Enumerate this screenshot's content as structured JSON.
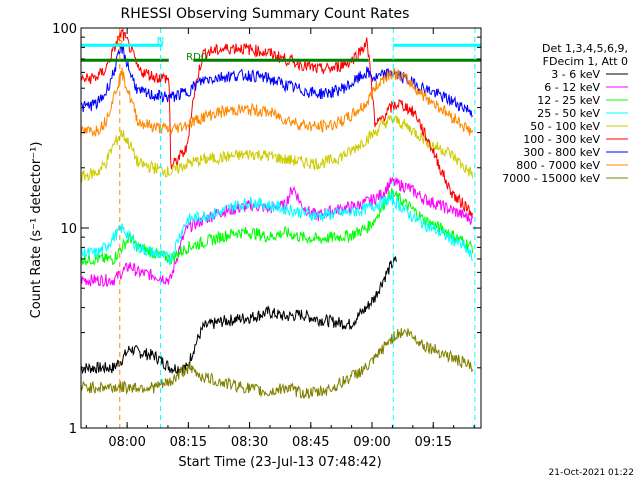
{
  "chart_data": {
    "type": "line",
    "title": "RHESSI Observing Summary Count Rates",
    "xlabel": "Start Time (23-Jul-13 07:48:42)",
    "ylabel": "Count Rate (s⁻¹ detector⁻¹)",
    "yscale": "log",
    "ylim": [
      1,
      100
    ],
    "xlim_minutes": [
      0,
      98
    ],
    "x_ticks": [
      {
        "t": 11.3,
        "label": "08:00"
      },
      {
        "t": 26.3,
        "label": "08:15"
      },
      {
        "t": 41.3,
        "label": "08:30"
      },
      {
        "t": 56.3,
        "label": "08:45"
      },
      {
        "t": 71.3,
        "label": "09:00"
      },
      {
        "t": 86.3,
        "label": "09:15"
      }
    ],
    "y_ticks": [
      {
        "v": 1,
        "label": "1"
      },
      {
        "v": 10,
        "label": "10"
      },
      {
        "v": 100,
        "label": "100"
      }
    ],
    "legend_header": [
      "Det 1,3,4,5,6,9,",
      "FDecim 1, Att 0"
    ],
    "legend_placement": "right",
    "series": [
      {
        "name": "3 - 6 keV",
        "color": "#000000",
        "x": [
          0,
          8,
          10,
          12,
          14,
          18,
          22,
          26,
          30,
          34,
          38,
          42,
          46,
          50,
          54,
          58,
          62,
          66,
          70,
          72,
          74,
          76,
          77.5
        ],
        "y": [
          2.0,
          2.0,
          2.2,
          2.5,
          2.4,
          2.3,
          2.0,
          2.0,
          3.2,
          3.4,
          3.5,
          3.6,
          3.8,
          3.6,
          3.7,
          3.5,
          3.4,
          3.3,
          4.0,
          4.5,
          5.5,
          6.5,
          7.0
        ]
      },
      {
        "name": "6 - 12 keV",
        "color": "#ff00ff",
        "x": [
          0,
          8,
          10,
          12,
          14,
          18,
          22,
          26,
          30,
          34,
          38,
          42,
          46,
          50,
          52,
          54,
          56,
          58,
          60,
          64,
          68,
          70,
          72,
          74,
          76,
          78,
          80,
          82,
          84,
          86,
          88,
          90,
          92,
          94,
          96
        ],
        "y": [
          5.5,
          5.5,
          6.0,
          6.5,
          6.0,
          5.8,
          5.5,
          10.0,
          11.0,
          12.0,
          12.5,
          13.0,
          12.5,
          13.0,
          16.0,
          13.0,
          12.0,
          11.5,
          12.0,
          12.5,
          13.0,
          13.5,
          14.0,
          15.0,
          17.0,
          16.5,
          16.0,
          15.0,
          14.0,
          13.5,
          13.0,
          12.5,
          12.0,
          11.5,
          11.0
        ]
      },
      {
        "name": "12 - 25 keV",
        "color": "#00ff00",
        "x": [
          0,
          8,
          10,
          12,
          14,
          18,
          22,
          26,
          30,
          34,
          38,
          42,
          46,
          50,
          54,
          58,
          62,
          66,
          70,
          72,
          74,
          76,
          78,
          80,
          82,
          84,
          86,
          88,
          90,
          92,
          94,
          96
        ],
        "y": [
          7.0,
          7.0,
          8.0,
          9.0,
          8.0,
          7.5,
          7.0,
          8.0,
          8.5,
          9.0,
          9.5,
          9.5,
          9.0,
          9.5,
          9.0,
          8.8,
          9.0,
          9.2,
          10.0,
          11.0,
          13.0,
          15.0,
          14.0,
          13.0,
          12.0,
          11.0,
          10.5,
          10.0,
          9.5,
          9.0,
          8.5,
          8.0
        ]
      },
      {
        "name": "25 - 50 keV",
        "color": "#00ffff",
        "x": [
          0,
          4,
          6,
          8,
          10,
          12,
          14,
          18,
          22,
          26,
          30,
          34,
          38,
          42,
          46,
          50,
          54,
          58,
          62,
          66,
          70,
          72,
          74,
          76,
          78,
          80,
          82,
          84,
          86,
          88,
          90,
          92,
          94,
          96
        ],
        "y": [
          7.5,
          7.5,
          8.0,
          9.0,
          10.0,
          9.0,
          8.0,
          7.5,
          7.0,
          11.0,
          11.5,
          12.0,
          13.0,
          13.5,
          13.0,
          12.5,
          12.0,
          11.5,
          11.8,
          12.0,
          12.5,
          13.0,
          13.5,
          14.0,
          13.0,
          12.0,
          11.0,
          10.5,
          10.0,
          9.5,
          9.0,
          8.5,
          8.0,
          7.0
        ]
      },
      {
        "name": "50 - 100 keV",
        "color": "#cccc00",
        "x": [
          0,
          4,
          6,
          8,
          10,
          12,
          14,
          18,
          22,
          26,
          30,
          34,
          38,
          42,
          46,
          50,
          54,
          58,
          62,
          66,
          70,
          72,
          74,
          76,
          78,
          80,
          82,
          84,
          86,
          88,
          90,
          92,
          94,
          96
        ],
        "y": [
          18.0,
          19.0,
          21.0,
          26.0,
          30.0,
          26.0,
          21.0,
          20.0,
          19.0,
          21.0,
          22.0,
          22.5,
          23.0,
          23.5,
          23.0,
          22.0,
          21.5,
          21.0,
          22.0,
          24.0,
          28.0,
          30.0,
          33.0,
          35.0,
          34.0,
          32.0,
          30.0,
          28.0,
          26.0,
          25.0,
          24.0,
          22.0,
          20.0,
          18.5
        ]
      },
      {
        "name": "100 - 300 keV",
        "color": "#ff0000",
        "x": [
          0,
          4,
          6,
          8,
          10,
          12,
          14,
          18,
          21.5,
          22,
          26,
          30,
          34,
          38,
          42,
          46,
          50,
          54,
          58,
          62,
          66,
          68,
          70,
          72,
          74,
          76,
          78,
          80,
          82,
          84,
          86,
          88,
          90,
          92,
          94,
          96
        ],
        "y": [
          55.0,
          57.0,
          62.0,
          78.0,
          95.0,
          80.0,
          62.0,
          57.0,
          56.0,
          20.0,
          25.0,
          75.0,
          78.0,
          80.0,
          78.0,
          75.0,
          70.0,
          66.0,
          62.0,
          63.0,
          68.0,
          75.0,
          85.0,
          32.0,
          36.0,
          40.0,
          42.0,
          40.0,
          37.0,
          30.0,
          25.0,
          20.0,
          16.0,
          14.0,
          13.0,
          12.0
        ]
      },
      {
        "name": "300 - 800 keV",
        "color": "#0000ff",
        "x": [
          0,
          4,
          6,
          8,
          10,
          12,
          14,
          18,
          22,
          26,
          30,
          34,
          38,
          42,
          46,
          50,
          54,
          58,
          62,
          66,
          70,
          72,
          74,
          76,
          78,
          80,
          82,
          84,
          86,
          88,
          90,
          92,
          94,
          96
        ],
        "y": [
          40.0,
          42.0,
          47.0,
          60.0,
          80.0,
          60.0,
          48.0,
          46.0,
          45.0,
          48.0,
          55.0,
          57.0,
          58.0,
          58.0,
          56.0,
          52.0,
          49.0,
          47.0,
          48.0,
          52.0,
          60.0,
          56.0,
          58.0,
          60.0,
          58.0,
          55.0,
          52.0,
          50.0,
          48.0,
          46.0,
          44.0,
          42.0,
          40.0,
          38.0
        ]
      },
      {
        "name": "800 - 7000 keV",
        "color": "#ff8800",
        "x": [
          0,
          4,
          6,
          8,
          10,
          12,
          14,
          18,
          22,
          26,
          30,
          34,
          38,
          42,
          46,
          50,
          54,
          58,
          62,
          66,
          70,
          72,
          74,
          76,
          78,
          80,
          82,
          84,
          86,
          88,
          90,
          92,
          94,
          96
        ],
        "y": [
          30.0,
          31.0,
          34.0,
          45.0,
          60.0,
          45.0,
          34.0,
          32.0,
          31.0,
          33.0,
          36.0,
          38.0,
          39.0,
          39.0,
          38.0,
          35.0,
          33.0,
          32.0,
          33.0,
          36.0,
          42.0,
          50.0,
          56.0,
          60.0,
          58.0,
          55.0,
          50.0,
          46.0,
          43.0,
          40.0,
          37.0,
          35.0,
          32.0,
          30.0
        ]
      },
      {
        "name": "7000 - 15000 keV",
        "color": "#808000",
        "x": [
          0,
          18,
          22,
          26,
          30,
          34,
          40,
          46,
          50,
          54,
          58,
          62,
          66,
          70,
          72,
          74,
          76,
          78,
          80,
          82,
          84,
          86,
          88,
          90,
          92,
          94,
          96
        ],
        "y": [
          1.6,
          1.6,
          1.7,
          2.0,
          1.8,
          1.7,
          1.6,
          1.5,
          1.6,
          1.5,
          1.5,
          1.6,
          1.8,
          2.0,
          2.2,
          2.5,
          2.8,
          3.0,
          3.0,
          2.8,
          2.6,
          2.5,
          2.4,
          2.3,
          2.2,
          2.1,
          2.0
        ]
      }
    ],
    "annotations": [
      {
        "text": "S",
        "t": 9.5,
        "color": "#ff8800"
      },
      {
        "text": "N",
        "t": 19.3,
        "color": "#00ffff"
      },
      {
        "text": "RD0",
        "t": 26.5,
        "color": "#008000"
      }
    ],
    "status_bars": [
      {
        "name": "night",
        "color": "#00ffff",
        "intervals": [
          [
            0,
            20
          ],
          [
            76.5,
            98
          ]
        ],
        "level": 82
      },
      {
        "name": "saa-flag",
        "color": "#008000",
        "intervals": [
          [
            0,
            21.5
          ],
          [
            27.5,
            70.5
          ],
          [
            71.5,
            98
          ]
        ],
        "level": 69
      }
    ],
    "vertical_markers": [
      {
        "t": 9.5,
        "color": "#ff8800",
        "style": "dashed"
      },
      {
        "t": 19.5,
        "color": "#00ffff",
        "style": "dashed"
      },
      {
        "t": 76.5,
        "color": "#00ffff",
        "style": "dashed"
      },
      {
        "t": 96.5,
        "color": "#00ffff",
        "style": "dashed"
      }
    ],
    "footer": "21-Oct-2021 01:22"
  }
}
